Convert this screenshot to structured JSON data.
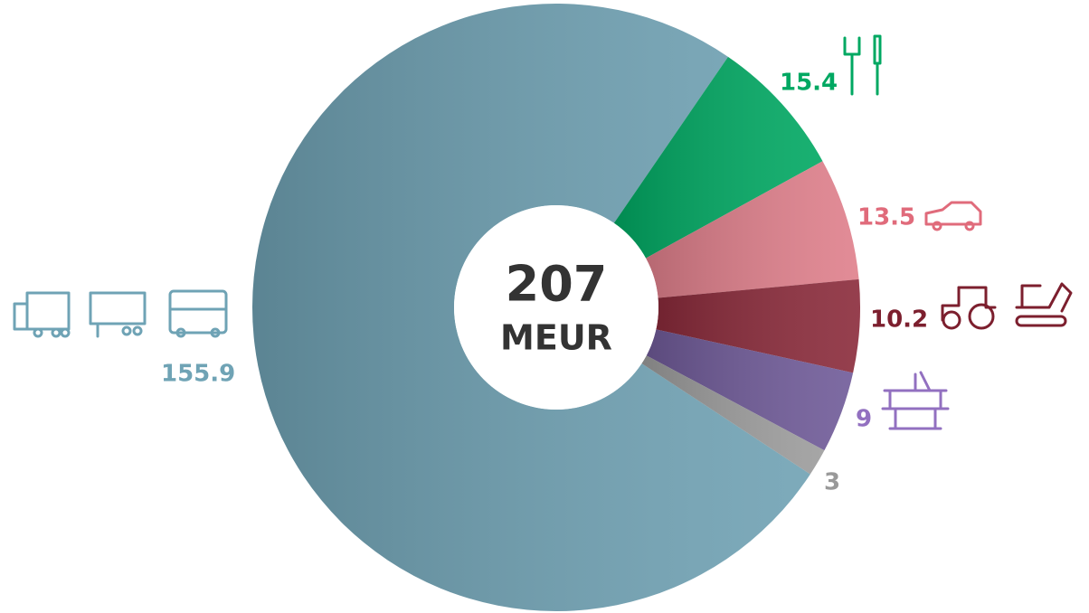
{
  "chart_data": {
    "type": "donut",
    "center_label": "207",
    "center_unit": "MEUR",
    "values": [
      155.9,
      15.4,
      13.5,
      10.2,
      9,
      3
    ],
    "colors": [
      "#6fa1b3",
      "#00a862",
      "#df7f8b",
      "#8a2a3a",
      "#6f5a98",
      "#9c9c9c"
    ],
    "label_colors": [
      "#6fa3b5",
      "#00a862",
      "#e06b7b",
      "#7c1f2e",
      "#9270c0",
      "#999999"
    ]
  }
}
